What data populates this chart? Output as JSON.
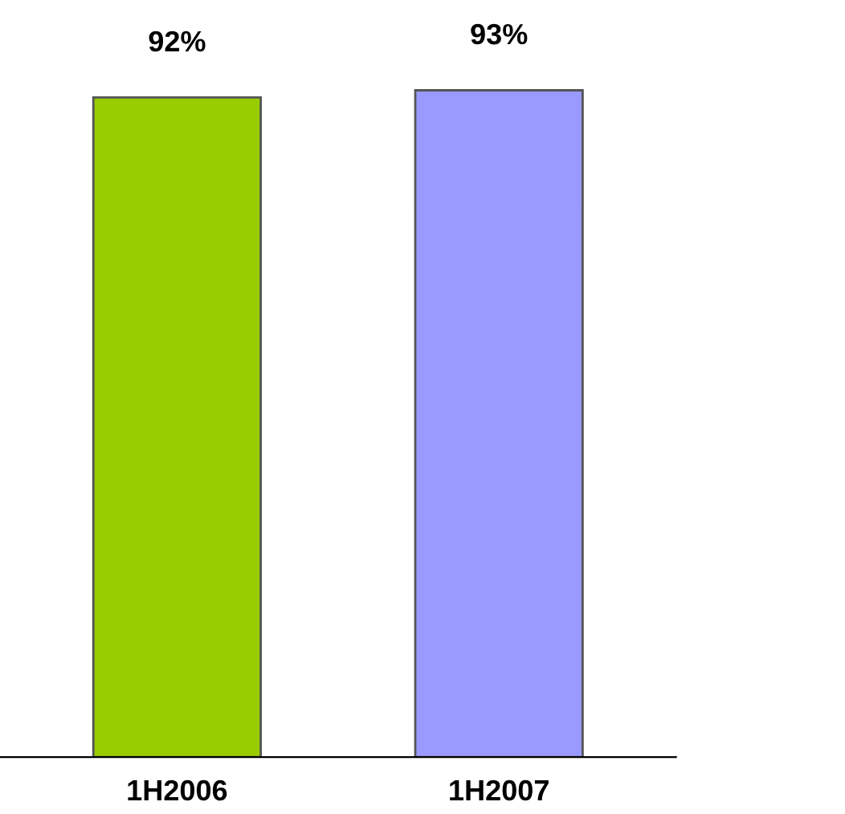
{
  "chart_data": {
    "type": "bar",
    "categories": [
      "1H2006",
      "1H2007"
    ],
    "values": [
      92,
      93
    ],
    "colors": [
      "#99cc00",
      "#9999ff"
    ],
    "value_labels": [
      "92%",
      "93%"
    ],
    "grid": false,
    "legend": false
  }
}
